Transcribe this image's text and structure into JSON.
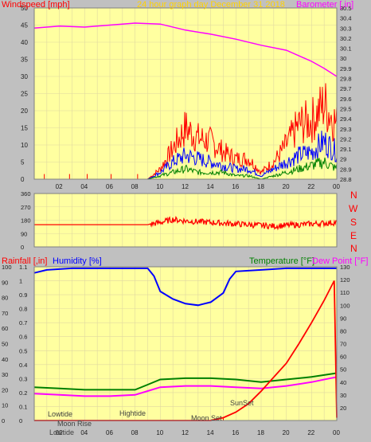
{
  "header": {
    "windspeed_label": "Windspeed [mph]",
    "title": "24 hour graph day   December 31 2018",
    "barometer_label": "Barometer [,in]"
  },
  "lower_header": {
    "rainfall_label": "Rainfall [,in]",
    "humidity_label": "Humidity [%]",
    "temperature_label": "Temperature [°F]",
    "dewpoint_label": "Dew Point [°F]"
  },
  "compass": [
    "N",
    "W",
    "S",
    "E",
    "N"
  ],
  "events": {
    "lowtide_1": "Lowtide",
    "hightide": "Hightide",
    "moonrise": "Moon Rise",
    "moonset": "Moon Set",
    "sunset": "SunSet",
    "lowtide_2": "Lowtide"
  },
  "colors": {
    "plot_bg": "#ffffa0",
    "page_bg": "#c0c0c0",
    "wind": "#ff0000",
    "wind_avg1": "#0000ff",
    "wind_avg2": "#008000",
    "barometer": "#ff00ff",
    "humidity": "#0000ff",
    "temperature": "#008000",
    "dewpoint": "#ff00ff",
    "rain": "#ff0000",
    "title_text": "#ffd200"
  },
  "chart_data": [
    {
      "type": "line",
      "name": "wind-barometer",
      "x_ticks": [
        "02",
        "04",
        "06",
        "08",
        "10",
        "12",
        "14",
        "16",
        "18",
        "20",
        "22",
        "00"
      ],
      "left_axis": {
        "ylim": [
          0,
          50
        ],
        "ticks": [
          0,
          5,
          10,
          15,
          20,
          25,
          30,
          35,
          40,
          45,
          50
        ]
      },
      "right_axis": {
        "ylim": [
          28.8,
          30.5
        ],
        "ticks": [
          "28.8",
          "28.9",
          "29",
          "29.1",
          "29.2",
          "29.3",
          "29.4",
          "29.5",
          "29.6",
          "29.7",
          "29.8",
          "29.9",
          "30",
          "30.1",
          "30.2",
          "30.3",
          "30.4",
          "30.5"
        ]
      },
      "series": [
        {
          "role": "barometer",
          "axis": "right",
          "x": [
            0,
            2,
            4,
            6,
            8,
            10,
            12,
            14,
            16,
            18,
            20,
            22,
            23,
            24
          ],
          "y": [
            30.3,
            30.32,
            30.31,
            30.33,
            30.35,
            30.34,
            30.28,
            30.24,
            30.19,
            30.13,
            30.08,
            29.97,
            29.9,
            29.82
          ]
        },
        {
          "role": "gust",
          "axis": "left",
          "x": [
            0,
            9,
            10,
            11,
            12,
            13,
            14,
            15,
            16,
            17,
            18,
            19,
            20,
            21,
            22,
            23,
            24
          ],
          "y": [
            0,
            0,
            3,
            9,
            15,
            12,
            11,
            8,
            6,
            6,
            2,
            5,
            10,
            16,
            17,
            22,
            16
          ]
        },
        {
          "role": "average",
          "axis": "left",
          "x": [
            0,
            9,
            10,
            11,
            12,
            13,
            14,
            15,
            16,
            17,
            18,
            19,
            20,
            21,
            22,
            23,
            24
          ],
          "y": [
            0,
            0,
            2,
            5,
            7,
            6,
            5,
            4,
            3,
            3,
            1,
            3,
            5,
            7,
            8,
            11,
            8
          ]
        },
        {
          "role": "low",
          "axis": "left",
          "x": [
            0,
            9,
            10,
            11,
            12,
            13,
            14,
            15,
            16,
            17,
            18,
            19,
            20,
            21,
            22,
            23,
            24
          ],
          "y": [
            0,
            0,
            1,
            2,
            3,
            2,
            2,
            2,
            1,
            1,
            0,
            1,
            2,
            3,
            4,
            5,
            3
          ]
        }
      ]
    },
    {
      "type": "line",
      "name": "wind-direction",
      "x_ticks": [
        "02",
        "04",
        "06",
        "08",
        "10",
        "12",
        "14",
        "16",
        "18",
        "20",
        "22",
        "00"
      ],
      "ylim": [
        0,
        360
      ],
      "y_ticks": [
        0,
        90,
        180,
        270,
        360
      ],
      "series": [
        {
          "role": "direction",
          "x": [
            0,
            9,
            10,
            11,
            12,
            13,
            14,
            15,
            16,
            17,
            18,
            19,
            20,
            21,
            22,
            23,
            24
          ],
          "y": [
            150,
            150,
            165,
            185,
            175,
            170,
            165,
            160,
            155,
            150,
            145,
            140,
            145,
            150,
            155,
            160,
            165
          ]
        }
      ]
    },
    {
      "type": "line",
      "name": "rain-humidity-temperature",
      "x_ticks": [
        "02",
        "04",
        "06",
        "08",
        "10",
        "12",
        "14",
        "16",
        "18",
        "20",
        "22",
        "00"
      ],
      "left_axis": {
        "ylim": [
          0,
          1.1
        ],
        "ticks": [
          "0",
          "0.1",
          "0.2",
          "0.3",
          "0.4",
          "0.5",
          "0.6",
          "0.7",
          "0.8",
          "0.9",
          "1",
          "1.1"
        ]
      },
      "humidity_axis": {
        "ylim": [
          0,
          100
        ],
        "ticks": [
          0,
          10,
          20,
          30,
          40,
          50,
          60,
          70,
          80,
          90,
          100
        ]
      },
      "right_axis": {
        "ylim": [
          10,
          130
        ],
        "ticks": [
          20,
          30,
          40,
          50,
          60,
          70,
          80,
          90,
          100,
          110,
          120,
          130
        ]
      },
      "series": [
        {
          "role": "humidity",
          "axis": "humidity",
          "x": [
            0,
            1,
            3,
            5,
            7,
            8,
            9,
            9.5,
            10,
            11,
            12,
            13,
            14,
            15,
            15.5,
            16,
            18,
            20,
            22,
            24
          ],
          "y": [
            96,
            98,
            99,
            99,
            99,
            99,
            99,
            94,
            84,
            79,
            76,
            75,
            77,
            83,
            92,
            97,
            98,
            99,
            99,
            99
          ]
        },
        {
          "role": "temperature",
          "axis": "right",
          "x": [
            0,
            2,
            4,
            6,
            8,
            9,
            10,
            12,
            14,
            16,
            18,
            20,
            22,
            24
          ],
          "y": [
            36,
            35,
            34,
            34,
            34,
            38,
            42,
            43,
            43,
            42,
            40,
            42,
            44,
            47
          ]
        },
        {
          "role": "dewpoint",
          "axis": "right",
          "x": [
            0,
            2,
            4,
            6,
            8,
            9,
            10,
            12,
            14,
            16,
            18,
            20,
            22,
            24
          ],
          "y": [
            31,
            30,
            29,
            29,
            30,
            33,
            36,
            37,
            37,
            36,
            35,
            37,
            40,
            44
          ]
        },
        {
          "role": "rainfall",
          "axis": "left",
          "x": [
            0,
            14,
            15,
            16,
            17,
            18,
            19,
            20,
            21,
            22,
            23,
            23.8,
            24
          ],
          "y": [
            0,
            0,
            0.02,
            0.06,
            0.12,
            0.21,
            0.31,
            0.41,
            0.55,
            0.7,
            0.86,
            1.0,
            0.02
          ]
        }
      ]
    }
  ]
}
